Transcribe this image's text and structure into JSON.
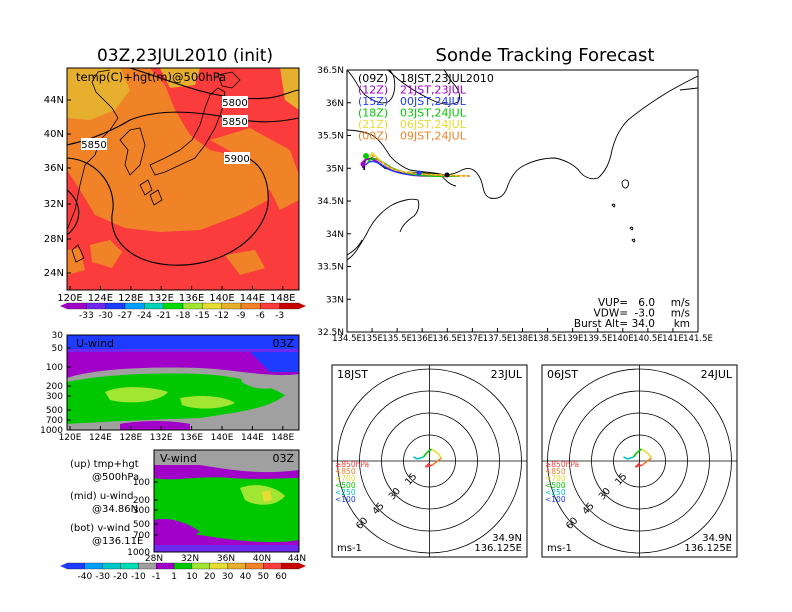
{
  "left": {
    "title": "03Z,23JUL2010 (init)",
    "map_label": "temp(C)+hgt(m)@500hPa",
    "lat_ticks": [
      "44N",
      "40N",
      "36N",
      "32N",
      "28N",
      "24N"
    ],
    "lon_ticks": [
      "120E",
      "124E",
      "128E",
      "132E",
      "136E",
      "140E",
      "144E",
      "148E"
    ],
    "contours": [
      "5800",
      "5850",
      "5850",
      "5900"
    ],
    "temp_colorbar": {
      "labels": [
        "-33",
        "-30",
        "-27",
        "-24",
        "-21",
        "-18",
        "-15",
        "-12",
        "-9",
        "-6",
        "-3"
      ],
      "colors": [
        "#a000c8",
        "#6e28f0",
        "#1e3cff",
        "#00a0ff",
        "#00d2b4",
        "#00dc00",
        "#a0e632",
        "#e6dc32",
        "#e6af2d",
        "#f08228",
        "#fa3c3c",
        "#c80000"
      ]
    },
    "u_panel": {
      "label": "U-wind",
      "time": "03Z",
      "p_ticks": [
        "30",
        "50",
        "100",
        "200",
        "300",
        "500",
        "700",
        "1000"
      ],
      "lon_ticks": [
        "120E",
        "124E",
        "128E",
        "132E",
        "136E",
        "140E",
        "144E",
        "148E"
      ]
    },
    "v_panel": {
      "label": "V-wind",
      "time": "03Z",
      "p_ticks": [
        "100",
        "200",
        "300",
        "500",
        "700",
        "1000"
      ],
      "lat_ticks": [
        "28N",
        "32N",
        "36N",
        "40N",
        "44N"
      ]
    },
    "notes": [
      {
        "line1": "(up) tmp+hgt",
        "line2": "@500hPa"
      },
      {
        "line1": "(mid) u-wind",
        "line2": "@34.86N"
      },
      {
        "line1": "(bot) v-wind",
        "line2": "@136.11E"
      }
    ],
    "wind_colorbar": {
      "labels": [
        "-40",
        "-30",
        "-20",
        "-10",
        "-1",
        "1",
        "10",
        "20",
        "30",
        "40",
        "50",
        "60"
      ],
      "colors": [
        "#1e3cff",
        "#00a0ff",
        "#00c8c8",
        "#00dcb4",
        "#a0a0a0",
        "#a000c8",
        "#00c800",
        "#a0e632",
        "#e6dc32",
        "#e6af2d",
        "#f08228",
        "#fa3c3c",
        "#c80000"
      ]
    }
  },
  "right": {
    "title": "Sonde Tracking Forecast",
    "lat_ticks": [
      "36.5N",
      "36N",
      "35.5N",
      "35N",
      "34.5N",
      "34N",
      "33.5N",
      "33N",
      "32.5N"
    ],
    "lon_ticks": [
      "134.5E",
      "135E",
      "135.5E",
      "136E",
      "136.5E",
      "137E",
      "137.5E",
      "138E",
      "138.5E",
      "139E",
      "139.5E",
      "140E",
      "140.5E",
      "141E",
      "141.5E"
    ],
    "legend": [
      {
        "code": "(09Z)",
        "time": "18JST,23JUL2010",
        "color": "#000000"
      },
      {
        "code": "(12Z)",
        "time": "21JST,23JUL",
        "color": "#a000c8"
      },
      {
        "code": "(15Z)",
        "time": "00JST,24JUL",
        "color": "#1e3cff"
      },
      {
        "code": "(18Z)",
        "time": "03JST,24JUL",
        "color": "#00c800"
      },
      {
        "code": "(21Z)",
        "time": "06JST,24JUL",
        "color": "#e6dc32"
      },
      {
        "code": "(00Z)",
        "time": "09JST,24JUL",
        "color": "#f08228"
      }
    ],
    "params": [
      {
        "label": "VUP=",
        "value": "6.0",
        "unit": "m/s"
      },
      {
        "label": "VDW=",
        "value": "-3.0",
        "unit": "m/s"
      },
      {
        "label": "Burst Alt=",
        "value": "34.0",
        "unit": "km"
      }
    ]
  },
  "hodographs": [
    {
      "time": "18JST",
      "date": "23JUL",
      "rings": [
        "15",
        "30",
        "45",
        "60"
      ],
      "levels": [
        {
          "label": "≥850hPa",
          "color": "#fa3c3c"
        },
        {
          "label": "<850",
          "color": "#f08228"
        },
        {
          "label": "<700",
          "color": "#e6dc32"
        },
        {
          "label": "<500",
          "color": "#00c800"
        },
        {
          "label": "<250",
          "color": "#00c8c8"
        },
        {
          "label": "<100",
          "color": "#1e3cff"
        }
      ],
      "unit": "ms-1",
      "lat": "34.9N",
      "lon": "136.125E"
    },
    {
      "time": "06JST",
      "date": "24JUL",
      "rings": [
        "15",
        "30",
        "45",
        "60"
      ],
      "levels": [
        {
          "label": "≥850hPa",
          "color": "#fa3c3c"
        },
        {
          "label": "<850",
          "color": "#f08228"
        },
        {
          "label": "<700",
          "color": "#e6dc32"
        },
        {
          "label": "<500",
          "color": "#00c800"
        },
        {
          "label": "<250",
          "color": "#00c8c8"
        },
        {
          "label": "<100",
          "color": "#1e3cff"
        }
      ],
      "unit": "ms-1",
      "lat": "34.9N",
      "lon": "136.125E"
    }
  ]
}
